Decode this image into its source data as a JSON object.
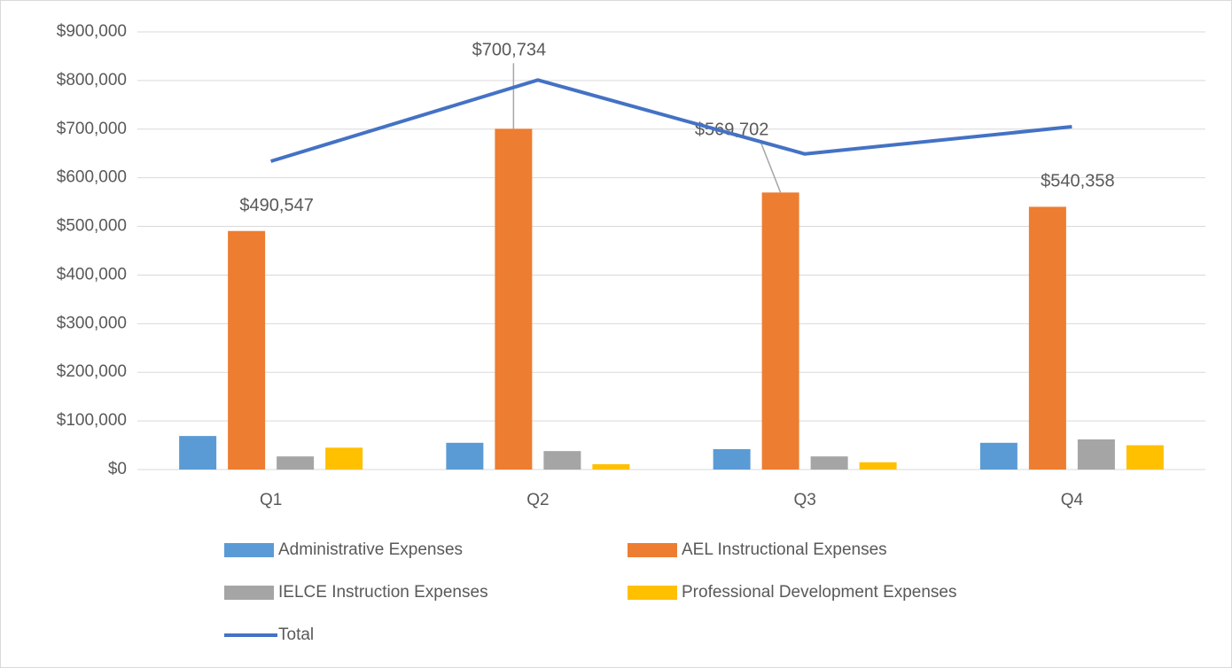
{
  "chart_data": {
    "type": "bar",
    "categories": [
      "Q1",
      "Q2",
      "Q3",
      "Q4"
    ],
    "series": [
      {
        "name": "Administrative Expenses",
        "color": "#5b9bd5",
        "values": [
          69000,
          55000,
          42000,
          55000
        ]
      },
      {
        "name": "AEL Instructional Expenses",
        "color": "#ed7d31",
        "values": [
          490547,
          700734,
          569702,
          540358
        ],
        "value_labels": [
          "$490,547",
          "$700,734",
          "$569,702",
          "$540,358"
        ]
      },
      {
        "name": "IELCE Instruction Expenses",
        "color": "#a5a5a5",
        "values": [
          27000,
          38000,
          27000,
          62000
        ]
      },
      {
        "name": "Professional Development Expenses",
        "color": "#ffc000",
        "values": [
          45000,
          11000,
          15000,
          50000
        ]
      },
      {
        "name": "Total",
        "color": "#4472c4",
        "type": "line",
        "values": [
          634000,
          801000,
          649000,
          705000
        ]
      }
    ],
    "ylim": [
      0,
      900000
    ],
    "yticks": [
      {
        "value": 0,
        "label": "$0"
      },
      {
        "value": 100000,
        "label": "$100,000"
      },
      {
        "value": 200000,
        "label": "$200,000"
      },
      {
        "value": 300000,
        "label": "$300,000"
      },
      {
        "value": 400000,
        "label": "$400,000"
      },
      {
        "value": 500000,
        "label": "$500,000"
      },
      {
        "value": 600000,
        "label": "$600,000"
      },
      {
        "value": 700000,
        "label": "$700,000"
      },
      {
        "value": 800000,
        "label": "$800,000"
      },
      {
        "value": 900000,
        "label": "$900,000"
      }
    ],
    "grid": true,
    "legend": "bottom"
  }
}
